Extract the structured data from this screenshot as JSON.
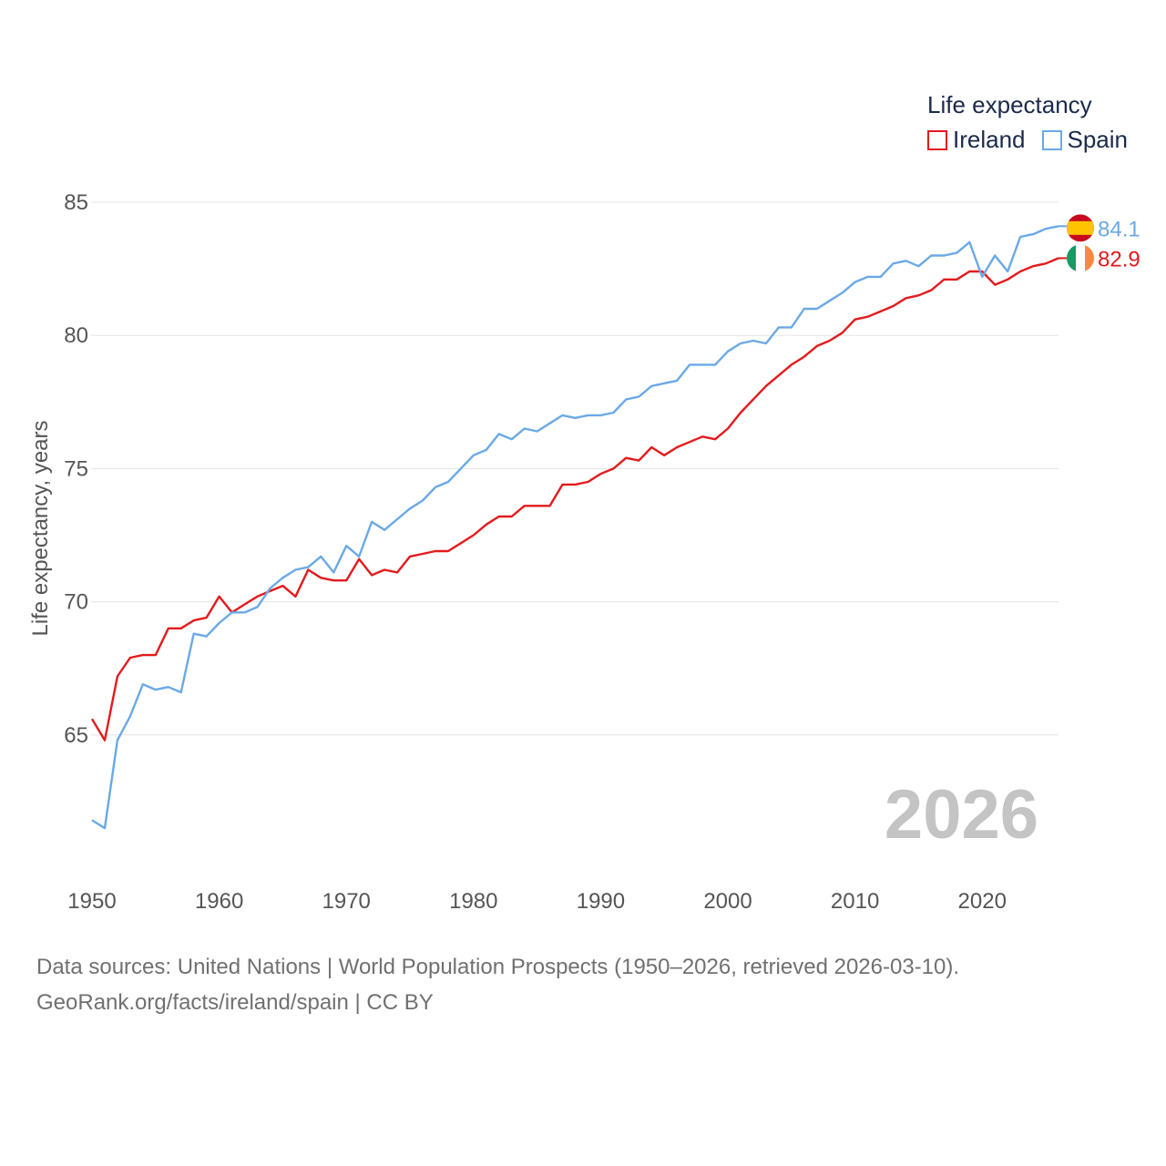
{
  "legend": {
    "title": "Life expectancy",
    "ireland_label": "Ireland",
    "spain_label": "Spain"
  },
  "colors": {
    "ireland": "#e31a1c",
    "spain": "#6aa9e6",
    "grid": "#e6e6e6",
    "tick": "#555555",
    "year_watermark": "#c4c4c4"
  },
  "footer": {
    "line1": "Data sources: United Nations | World Population Prospects (1950–2026, retrieved 2026-03-10).",
    "line2": "GeoRank.org/facts/ireland/spain | CC BY"
  },
  "chart_data": {
    "type": "line",
    "title": "Life expectancy",
    "xlabel": "",
    "ylabel": "Life expectancy, years",
    "xlim": [
      1950,
      2026
    ],
    "ylim": [
      61,
      86
    ],
    "xticks": [
      1950,
      1960,
      1970,
      1980,
      1990,
      2000,
      2010,
      2020
    ],
    "yticks": [
      65,
      70,
      75,
      80,
      85
    ],
    "grid": true,
    "legend_position": "top-right",
    "year_label": "2026",
    "x": [
      1950,
      1951,
      1952,
      1953,
      1954,
      1955,
      1956,
      1957,
      1958,
      1959,
      1960,
      1961,
      1962,
      1963,
      1964,
      1965,
      1966,
      1967,
      1968,
      1969,
      1970,
      1971,
      1972,
      1973,
      1974,
      1975,
      1976,
      1977,
      1978,
      1979,
      1980,
      1981,
      1982,
      1983,
      1984,
      1985,
      1986,
      1987,
      1988,
      1989,
      1990,
      1991,
      1992,
      1993,
      1994,
      1995,
      1996,
      1997,
      1998,
      1999,
      2000,
      2001,
      2002,
      2003,
      2004,
      2005,
      2006,
      2007,
      2008,
      2009,
      2010,
      2011,
      2012,
      2013,
      2014,
      2015,
      2016,
      2017,
      2018,
      2019,
      2020,
      2021,
      2022,
      2023,
      2024,
      2025,
      2026
    ],
    "series": [
      {
        "name": "Ireland",
        "color": "#e31a1c",
        "end_label": "82.9",
        "flag": "ireland",
        "values": [
          65.6,
          64.8,
          67.2,
          67.9,
          68.0,
          68.0,
          69.0,
          69.0,
          69.3,
          69.4,
          70.2,
          69.6,
          69.9,
          70.2,
          70.4,
          70.6,
          70.2,
          71.2,
          70.9,
          70.8,
          70.8,
          71.6,
          71.0,
          71.2,
          71.1,
          71.7,
          71.8,
          71.9,
          71.9,
          72.2,
          72.5,
          72.9,
          73.2,
          73.2,
          73.6,
          73.6,
          73.6,
          74.4,
          74.4,
          74.5,
          74.8,
          75.0,
          75.4,
          75.3,
          75.8,
          75.5,
          75.8,
          76.0,
          76.2,
          76.1,
          76.5,
          77.1,
          77.6,
          78.1,
          78.5,
          78.9,
          79.2,
          79.6,
          79.8,
          80.1,
          80.6,
          80.7,
          80.9,
          81.1,
          81.4,
          81.5,
          81.7,
          82.1,
          82.1,
          82.4,
          82.4,
          81.9,
          82.1,
          82.4,
          82.6,
          82.7,
          82.9
        ]
      },
      {
        "name": "Spain",
        "color": "#6aa9e6",
        "end_label": "84.1",
        "flag": "spain",
        "values": [
          61.8,
          61.5,
          64.8,
          65.7,
          66.9,
          66.7,
          66.8,
          66.6,
          68.8,
          68.7,
          69.2,
          69.6,
          69.6,
          69.8,
          70.5,
          70.9,
          71.2,
          71.3,
          71.7,
          71.1,
          72.1,
          71.7,
          73.0,
          72.7,
          73.1,
          73.5,
          73.8,
          74.3,
          74.5,
          75.0,
          75.5,
          75.7,
          76.3,
          76.1,
          76.5,
          76.4,
          76.7,
          77.0,
          76.9,
          77.0,
          77.0,
          77.1,
          77.6,
          77.7,
          78.1,
          78.2,
          78.3,
          78.9,
          78.9,
          78.9,
          79.4,
          79.7,
          79.8,
          79.7,
          80.3,
          80.3,
          81.0,
          81.0,
          81.3,
          81.6,
          82.0,
          82.2,
          82.2,
          82.7,
          82.8,
          82.6,
          83.0,
          83.0,
          83.1,
          83.5,
          82.2,
          83.0,
          82.4,
          83.7,
          83.8,
          84.0,
          84.1
        ]
      }
    ]
  }
}
